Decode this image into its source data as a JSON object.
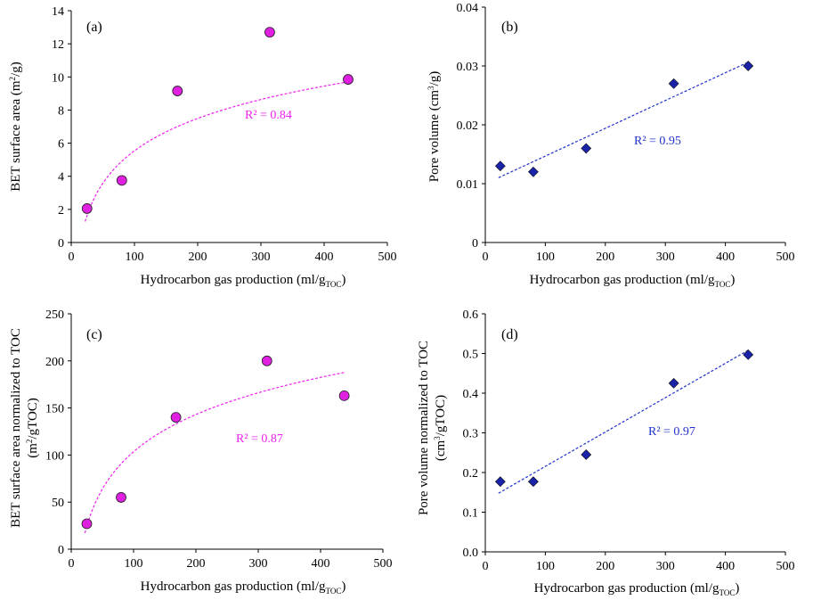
{
  "figure": {
    "x_label_main": "Hydrocarbon gas production (ml/g",
    "x_label_sub": "TOC",
    "x_label_close": ")"
  },
  "chart_data": [
    {
      "type": "scatter",
      "panel": "(a)",
      "marker": "circle",
      "marker_color": "#e020e0",
      "fit": "logarithmic",
      "fit_color": "#ee22ee",
      "r2_label": "R² = 0.84",
      "xlabel": "Hydrocarbon gas production (ml/gTOC)",
      "ylabel_parts": [
        "BET surface area (m",
        "2",
        "/g)"
      ],
      "xlim": [
        0,
        500
      ],
      "ylim": [
        0,
        14
      ],
      "xticks": [
        0,
        100,
        200,
        300,
        400,
        500
      ],
      "yticks": [
        0,
        2,
        4,
        6,
        8,
        10,
        12,
        14
      ],
      "x": [
        25,
        80,
        168,
        314,
        438
      ],
      "y": [
        2.05,
        3.75,
        9.15,
        12.7,
        9.85
      ],
      "fit_range": [
        22,
        438
      ],
      "fit_coef": [
        2.82,
        -7.45
      ]
    },
    {
      "type": "scatter",
      "panel": "(b)",
      "marker": "diamond",
      "marker_color": "#1a22a8",
      "fit": "linear",
      "fit_color": "#2233cc",
      "r2_label": "R² = 0.95",
      "xlabel": "Hydrocarbon gas production (ml/gTOC)",
      "ylabel_parts": [
        "Pore volume (cm",
        "3",
        "/g)"
      ],
      "xlim": [
        0,
        500
      ],
      "ylim": [
        0,
        0.04
      ],
      "xticks": [
        0,
        100,
        200,
        300,
        400,
        500
      ],
      "yticks": [
        0,
        0.01,
        0.02,
        0.03,
        0.04
      ],
      "ytick_labels": [
        "0",
        "0.01",
        "0.02",
        "0.03",
        "0.04"
      ],
      "x": [
        25,
        80,
        168,
        314,
        438
      ],
      "y": [
        0.013,
        0.012,
        0.016,
        0.027,
        0.03
      ],
      "fit_range": [
        22,
        438
      ],
      "fit_coef": [
        4.72e-05,
        0.00997
      ]
    },
    {
      "type": "scatter",
      "panel": "(c)",
      "marker": "circle",
      "marker_color": "#e020e0",
      "fit": "logarithmic",
      "fit_color": "#ee22ee",
      "r2_label": "R² = 0.87",
      "xlabel": "Hydrocarbon gas production (ml/gTOC)",
      "ylabel_parts": [
        "BET surface area normalized to TOC",
        "(m",
        "2",
        "/gTOC)"
      ],
      "xlim": [
        0,
        500
      ],
      "ylim": [
        0,
        250
      ],
      "xticks": [
        0,
        100,
        200,
        300,
        400,
        500
      ],
      "yticks": [
        0,
        50,
        100,
        150,
        200,
        250
      ],
      "x": [
        25,
        80,
        168,
        314,
        438
      ],
      "y": [
        27,
        55,
        140,
        200,
        163
      ],
      "fit_range": [
        22,
        438
      ],
      "fit_coef": [
        57.0,
        -159.0
      ]
    },
    {
      "type": "scatter",
      "panel": "(d)",
      "marker": "diamond",
      "marker_color": "#1a22a8",
      "fit": "linear",
      "fit_color": "#2233cc",
      "r2_label": "R² = 0.97",
      "xlabel": "Hydrocarbon gas production (ml/gTOC)",
      "ylabel_parts": [
        "Pore volume normalized to TOC",
        "(cm",
        "3",
        "/gTOC)"
      ],
      "xlim": [
        0,
        500
      ],
      "ylim": [
        0,
        0.6
      ],
      "xticks": [
        0,
        100,
        200,
        300,
        400,
        500
      ],
      "yticks": [
        0,
        0.1,
        0.2,
        0.3,
        0.4,
        0.5,
        0.6
      ],
      "ytick_labels": [
        "0.0",
        "0.1",
        "0.2",
        "0.3",
        "0.4",
        "0.5",
        "0.6"
      ],
      "x": [
        25,
        80,
        168,
        314,
        438
      ],
      "y": [
        0.177,
        0.177,
        0.245,
        0.425,
        0.497
      ],
      "fit_range": [
        22,
        438
      ],
      "fit_coef": [
        0.000866,
        0.1288
      ]
    }
  ]
}
